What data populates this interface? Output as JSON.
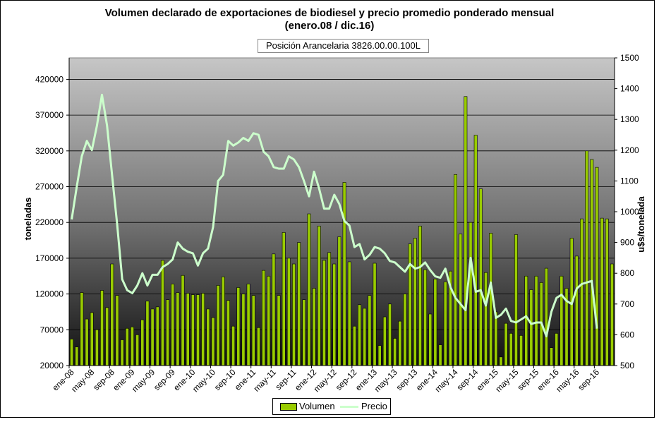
{
  "chart_data": {
    "type": "bar+line",
    "title_line1": "Volumen declarado de exportaciones de biodiesel y precio promedio ponderado mensual",
    "title_line2": "(enero.08 / dic.16)",
    "subtitle": "Posición Arancelaria 3826.00.00.100L",
    "ylabel_left": "toneladas",
    "ylabel_right": "u$s/tonelada",
    "yleft_lim": [
      20000,
      450000
    ],
    "yleft_ticks": [
      "20000",
      "70000",
      "120000",
      "170000",
      "220000",
      "270000",
      "320000",
      "370000",
      "420000"
    ],
    "yright_lim": [
      500,
      1500
    ],
    "yright_ticks": [
      "500",
      "600",
      "700",
      "800",
      "900",
      "1000",
      "1100",
      "1200",
      "1300",
      "1400",
      "1500"
    ],
    "x_tick_labels": [
      "ene-08",
      "may-08",
      "sep-08",
      "ene-09",
      "may-09",
      "sep-09",
      "ene-10",
      "may-10",
      "sep-10",
      "ene-11",
      "may-11",
      "sep-11",
      "ene-12",
      "may-12",
      "sep-12",
      "ene-13",
      "may-13",
      "sep-13",
      "ene-14",
      "may-14",
      "sep-14",
      "ene-15",
      "may-15",
      "sep-15",
      "ene-16",
      "may-16",
      "sep-16"
    ],
    "legend_position": "bottom",
    "series": [
      {
        "name": "Volumen",
        "type": "bar",
        "color": "#99cc00",
        "values": [
          57000,
          46000,
          122000,
          85000,
          94000,
          70000,
          125000,
          101000,
          162000,
          118000,
          56000,
          72000,
          74000,
          63000,
          84000,
          110000,
          99000,
          102000,
          167000,
          112000,
          134000,
          122000,
          146000,
          121000,
          119000,
          119000,
          121000,
          99000,
          87000,
          132000,
          144000,
          111000,
          75000,
          129000,
          120000,
          134000,
          118000,
          73000,
          153000,
          145000,
          176000,
          118000,
          206000,
          170000,
          162000,
          192000,
          112000,
          232000,
          128000,
          215000,
          167000,
          178000,
          162000,
          200000,
          276000,
          165000,
          75000,
          105000,
          100000,
          118000,
          163000,
          48000,
          88000,
          106000,
          58000,
          82000,
          120000,
          190000,
          198000,
          215000,
          154000,
          92000,
          141000,
          49000,
          137000,
          152000,
          287000,
          204000,
          396000,
          220000,
          342000,
          267000,
          150000,
          205000,
          95000,
          32000,
          79000,
          65000,
          203000,
          62000,
          145000,
          126000,
          145000,
          136000,
          156000,
          45000,
          65000,
          145000,
          128000,
          198000,
          173000,
          225000,
          320000,
          308000,
          297000,
          226000,
          225000,
          162000
        ]
      },
      {
        "name": "Precio",
        "type": "line",
        "color": "#ccffcc",
        "values": [
          975,
          1080,
          1180,
          1230,
          1200,
          1280,
          1380,
          1280,
          1120,
          960,
          780,
          745,
          735,
          760,
          800,
          760,
          795,
          795,
          820,
          830,
          845,
          900,
          880,
          870,
          865,
          825,
          865,
          880,
          950,
          1100,
          1120,
          1230,
          1215,
          1225,
          1240,
          1230,
          1255,
          1250,
          1195,
          1180,
          1145,
          1140,
          1140,
          1180,
          1170,
          1145,
          1100,
          1050,
          1130,
          1075,
          1010,
          1010,
          1055,
          1025,
          970,
          955,
          885,
          895,
          845,
          860,
          885,
          880,
          865,
          840,
          835,
          820,
          805,
          830,
          815,
          820,
          835,
          810,
          790,
          785,
          815,
          755,
          720,
          700,
          680,
          850,
          740,
          745,
          695,
          770,
          655,
          665,
          685,
          645,
          640,
          650,
          660,
          635,
          640,
          640,
          595,
          675,
          720,
          730,
          710,
          700,
          750,
          765,
          770,
          775,
          620
        ]
      }
    ]
  }
}
